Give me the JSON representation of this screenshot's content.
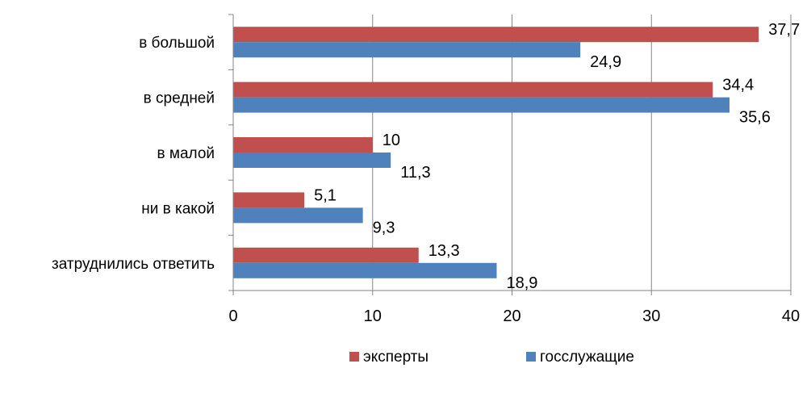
{
  "chart_data": {
    "type": "bar",
    "orientation": "horizontal",
    "categories": [
      "в большой",
      "в средней",
      "в малой",
      "ни в какой",
      "затруднились ответить"
    ],
    "series": [
      {
        "name": "эксперты",
        "values": [
          37.7,
          34.4,
          10,
          5.1,
          13.3
        ],
        "labels": [
          "37,7",
          "34,4",
          "10",
          "5,1",
          "13,3"
        ]
      },
      {
        "name": "госслужащие",
        "values": [
          24.9,
          35.6,
          11.3,
          9.3,
          18.9
        ],
        "labels": [
          "24,9",
          "35,6",
          "11,3",
          "9,3",
          "18,9"
        ]
      }
    ],
    "xlim": [
      0,
      40
    ],
    "xticks": [
      0,
      10,
      20,
      30,
      40
    ],
    "grid": true,
    "legend_position": "bottom",
    "colors": {
      "эксперты": "#c0504d",
      "госслужащие": "#4f81bd",
      "grid": "#868686",
      "axis": "#868686"
    }
  }
}
